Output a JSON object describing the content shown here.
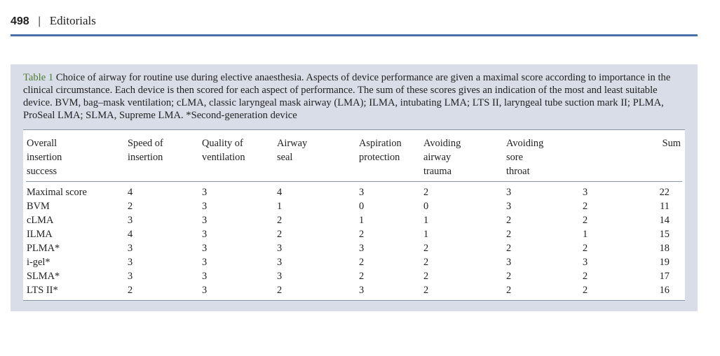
{
  "header": {
    "page": "498",
    "separator": "|",
    "section": "Editorials"
  },
  "caption": {
    "label": "Table 1",
    "text": "Choice of airway for routine use during elective anaesthesia. Aspects of device performance are given a maximal score according to importance in the clinical circumstance. Each device is then scored for each aspect of performance. The sum of these scores gives an indication of the most and least suitable device. BVM, bag–mask ventilation; cLMA, classic laryngeal mask airway (LMA); ILMA, intubating LMA; LTS II, laryngeal tube suction mark II; PLMA, ProSeal LMA; SLMA, Supreme LMA. *Second-generation device"
  },
  "table": {
    "columns": [
      [
        "Overall",
        "insertion",
        "success"
      ],
      [
        "Speed of",
        "insertion"
      ],
      [
        "Quality of",
        "ventilation"
      ],
      [
        "Airway",
        "seal"
      ],
      [
        "Aspiration",
        "protection"
      ],
      [
        "Avoiding",
        "airway",
        "trauma"
      ],
      [
        "Avoiding",
        "sore",
        "throat"
      ],
      [
        "Sum"
      ]
    ],
    "rows": [
      [
        "Maximal score",
        4,
        3,
        4,
        3,
        2,
        3,
        3,
        22
      ],
      [
        "BVM",
        2,
        3,
        1,
        0,
        0,
        3,
        2,
        11
      ],
      [
        "cLMA",
        3,
        3,
        2,
        1,
        1,
        2,
        2,
        14
      ],
      [
        "ILMA",
        4,
        3,
        2,
        2,
        1,
        2,
        1,
        15
      ],
      [
        "PLMA*",
        3,
        3,
        3,
        3,
        2,
        2,
        2,
        18
      ],
      [
        "i-gel*",
        3,
        3,
        3,
        2,
        2,
        3,
        3,
        19
      ],
      [
        "SLMA*",
        3,
        3,
        3,
        2,
        2,
        2,
        2,
        17
      ],
      [
        "LTS II*",
        2,
        3,
        2,
        3,
        2,
        2,
        2,
        16
      ]
    ]
  }
}
